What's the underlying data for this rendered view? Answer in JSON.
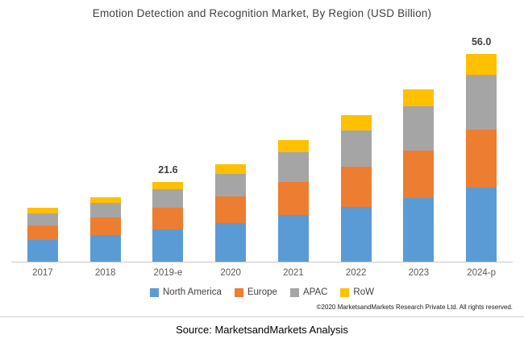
{
  "title": "Emotion Detection and Recognition Market, By Region (USD Billion)",
  "chart_data": {
    "type": "bar",
    "stacked": true,
    "title": "Emotion Detection and Recognition Market, By Region (USD Billion)",
    "categories": [
      "2017",
      "2018",
      "2019-e",
      "2020",
      "2021",
      "2022",
      "2023",
      "2024-p"
    ],
    "series": [
      {
        "name": "North America",
        "color": "#5B9BD5",
        "values": [
          5.9,
          7.1,
          8.6,
          10.4,
          12.6,
          14.8,
          17.1,
          20.1
        ]
      },
      {
        "name": "Europe",
        "color": "#ED7D31",
        "values": [
          3.9,
          4.8,
          5.9,
          7.2,
          9.0,
          10.9,
          12.9,
          15.6
        ]
      },
      {
        "name": "APAC",
        "color": "#A5A5A5",
        "values": [
          3.2,
          3.9,
          5.0,
          6.2,
          7.9,
          9.8,
          11.9,
          14.7
        ]
      },
      {
        "name": "RoW",
        "color": "#FFC000",
        "values": [
          1.5,
          1.7,
          2.1,
          2.6,
          3.4,
          4.1,
          4.6,
          5.6
        ]
      }
    ],
    "totals": [
      14.5,
      17.5,
      21.6,
      26.4,
      32.9,
      39.6,
      46.5,
      56.0
    ],
    "annotations": [
      {
        "category": "2019-e",
        "text": "21.6"
      },
      {
        "category": "2024-p",
        "text": "56.0"
      }
    ],
    "xlabel": "",
    "ylabel": "",
    "ylim": [
      0,
      60
    ],
    "grid": false,
    "legend_position": "bottom"
  },
  "footer": {
    "copyright": "©2020 MarketsandMarkets Research Private Ltd. All rights reserved.",
    "source": "Source: MarketsandMarkets Analysis"
  }
}
